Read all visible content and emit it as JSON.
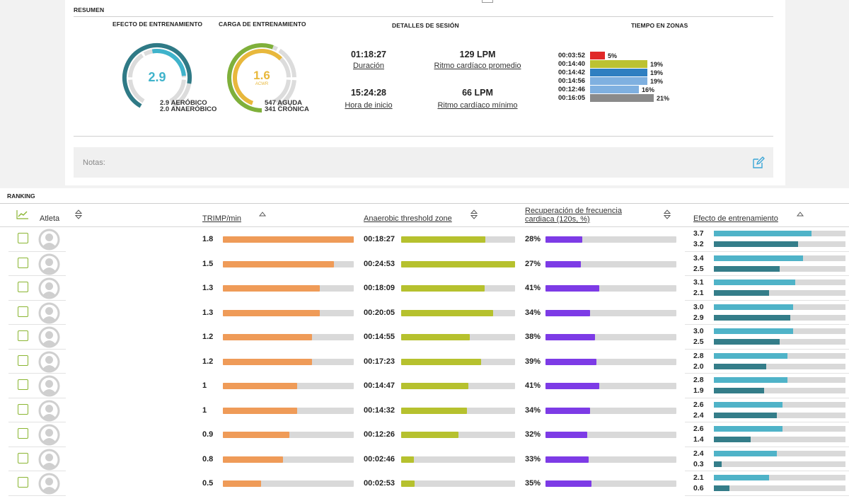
{
  "summary": {
    "section_title": "RESUMEN",
    "training_effect": {
      "title": "EFECTO DE ENTRENAMIENTO",
      "value": "2.9",
      "aerobic": "2.9 AERÓBICO",
      "anaerobic": "2.0 ANAERÓBICO",
      "aerobic_level": 2.9,
      "anaerobic_level": 2.0,
      "max": 5
    },
    "training_load": {
      "title": "CARGA DE ENTRENAMIENTO",
      "value": "1.6",
      "sublabel": "ACWR",
      "acute": "547 AGUDA",
      "chronic": "341 CRÓNICA",
      "acwr": 1.6,
      "max": 2
    },
    "session": {
      "title": "DETALLES DE SESIÓN",
      "duration_value": "01:18:27",
      "duration_label": "Duración",
      "avg_hr_value": "129 LPM",
      "avg_hr_label": "Ritmo cardíaco promedio",
      "start_value": "15:24:28",
      "start_label": "Hora de inicio",
      "min_hr_value": "66 LPM",
      "min_hr_label": "Ritmo cardíaco mínimo"
    },
    "zones": {
      "title": "TIEMPO EN ZONAS",
      "items": [
        {
          "time": "00:03:52",
          "pct": "5%",
          "fraction": 0.05,
          "color": "#e02828"
        },
        {
          "time": "00:14:40",
          "pct": "19%",
          "fraction": 0.19,
          "color": "#bcc232"
        },
        {
          "time": "00:14:42",
          "pct": "19%",
          "fraction": 0.19,
          "color": "#2f7fc1"
        },
        {
          "time": "00:14:56",
          "pct": "19%",
          "fraction": 0.19,
          "color": "#7fb0e0"
        },
        {
          "time": "00:12:46",
          "pct": "16%",
          "fraction": 0.16,
          "color": "#7fb0e0"
        },
        {
          "time": "00:16:05",
          "pct": "21%",
          "fraction": 0.21,
          "color": "#8a8a8a"
        }
      ]
    },
    "notes_placeholder": "Notas:"
  },
  "ranking": {
    "title": "RANKING",
    "headers": {
      "athlete": "Atleta",
      "trimp": "TRIMP/min",
      "anaerobic_zone": "Anaerobic threshold zone",
      "recovery_line1": "Recuperación de frecuencia",
      "recovery_line2": "cardiaca (120s, %)",
      "effect": "Efecto de entrenamiento"
    },
    "colors": {
      "trimp": "#ef9b58",
      "anaerobic": "#b6c12e",
      "recovery": "#7d3be6",
      "aerobic": "#4fb3c8",
      "anaerobic_effect": "#347d89",
      "checkbox": "#8ab531"
    },
    "rows": [
      {
        "trimp": "1.8",
        "trimp_frac": 1.0,
        "zone_time": "00:18:27",
        "zone_frac": 0.74,
        "recovery": "28%",
        "rec_frac": 0.28,
        "aer": "3.7",
        "aer_frac": 0.74,
        "ana": "3.2",
        "ana_frac": 0.64
      },
      {
        "trimp": "1.5",
        "trimp_frac": 0.85,
        "zone_time": "00:24:53",
        "zone_frac": 1.0,
        "recovery": "27%",
        "rec_frac": 0.27,
        "aer": "3.4",
        "aer_frac": 0.68,
        "ana": "2.5",
        "ana_frac": 0.5
      },
      {
        "trimp": "1.3",
        "trimp_frac": 0.74,
        "zone_time": "00:18:09",
        "zone_frac": 0.73,
        "recovery": "41%",
        "rec_frac": 0.41,
        "aer": "3.1",
        "aer_frac": 0.62,
        "ana": "2.1",
        "ana_frac": 0.42
      },
      {
        "trimp": "1.3",
        "trimp_frac": 0.74,
        "zone_time": "00:20:05",
        "zone_frac": 0.81,
        "recovery": "34%",
        "rec_frac": 0.34,
        "aer": "3.0",
        "aer_frac": 0.6,
        "ana": "2.9",
        "ana_frac": 0.58
      },
      {
        "trimp": "1.2",
        "trimp_frac": 0.68,
        "zone_time": "00:14:55",
        "zone_frac": 0.6,
        "recovery": "38%",
        "rec_frac": 0.38,
        "aer": "3.0",
        "aer_frac": 0.6,
        "ana": "2.5",
        "ana_frac": 0.5
      },
      {
        "trimp": "1.2",
        "trimp_frac": 0.68,
        "zone_time": "00:17:23",
        "zone_frac": 0.7,
        "recovery": "39%",
        "rec_frac": 0.39,
        "aer": "2.8",
        "aer_frac": 0.56,
        "ana": "2.0",
        "ana_frac": 0.4
      },
      {
        "trimp": "1",
        "trimp_frac": 0.57,
        "zone_time": "00:14:47",
        "zone_frac": 0.59,
        "recovery": "41%",
        "rec_frac": 0.41,
        "aer": "2.8",
        "aer_frac": 0.56,
        "ana": "1.9",
        "ana_frac": 0.38
      },
      {
        "trimp": "1",
        "trimp_frac": 0.57,
        "zone_time": "00:14:32",
        "zone_frac": 0.58,
        "recovery": "34%",
        "rec_frac": 0.34,
        "aer": "2.6",
        "aer_frac": 0.52,
        "ana": "2.4",
        "ana_frac": 0.48
      },
      {
        "trimp": "0.9",
        "trimp_frac": 0.51,
        "zone_time": "00:12:26",
        "zone_frac": 0.5,
        "recovery": "32%",
        "rec_frac": 0.32,
        "aer": "2.6",
        "aer_frac": 0.52,
        "ana": "1.4",
        "ana_frac": 0.28
      },
      {
        "trimp": "0.8",
        "trimp_frac": 0.46,
        "zone_time": "00:02:46",
        "zone_frac": 0.11,
        "recovery": "33%",
        "rec_frac": 0.33,
        "aer": "2.4",
        "aer_frac": 0.48,
        "ana": "0.3",
        "ana_frac": 0.06
      },
      {
        "trimp": "0.5",
        "trimp_frac": 0.29,
        "zone_time": "00:02:53",
        "zone_frac": 0.12,
        "recovery": "35%",
        "rec_frac": 0.35,
        "aer": "2.1",
        "aer_frac": 0.42,
        "ana": "0.6",
        "ana_frac": 0.12
      }
    ]
  }
}
